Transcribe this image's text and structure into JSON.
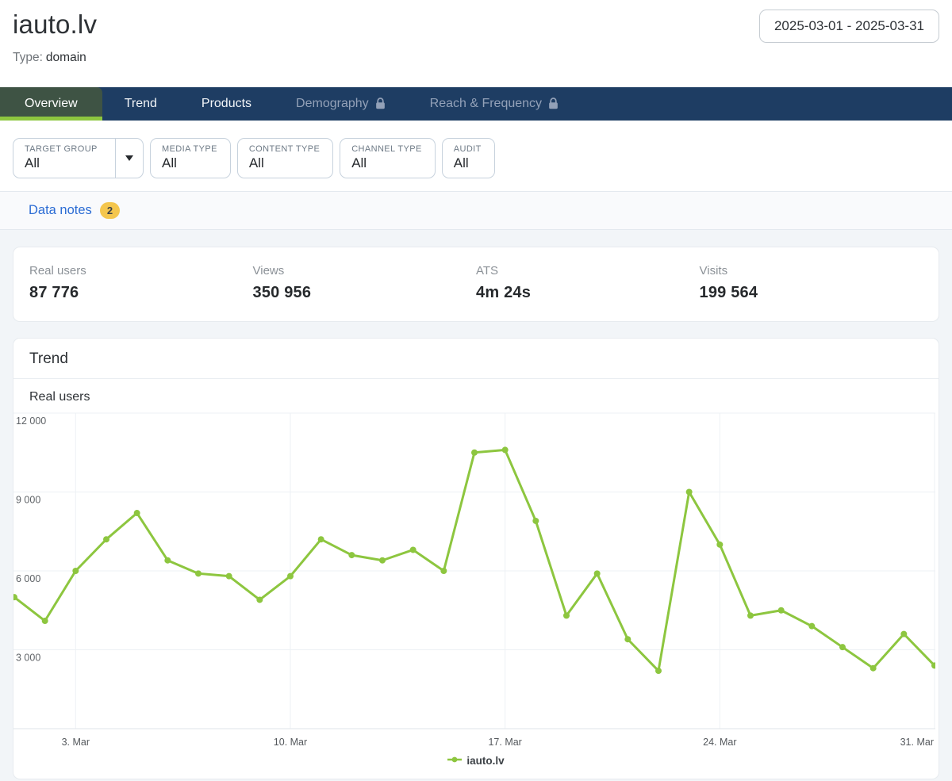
{
  "header": {
    "title": "iauto.lv",
    "type_label": "Type:",
    "type_value": "domain",
    "date_range": "2025-03-01 - 2025-03-31"
  },
  "nav": {
    "tabs": [
      {
        "label": "Overview",
        "active": true,
        "locked": false
      },
      {
        "label": "Trend",
        "active": false,
        "locked": false
      },
      {
        "label": "Products",
        "active": false,
        "locked": false
      },
      {
        "label": "Demography",
        "active": false,
        "locked": true
      },
      {
        "label": "Reach & Frequency",
        "active": false,
        "locked": true
      }
    ]
  },
  "filters": [
    {
      "label": "TARGET GROUP",
      "value": "All",
      "has_dropdown": true
    },
    {
      "label": "MEDIA TYPE",
      "value": "All",
      "has_dropdown": false
    },
    {
      "label": "CONTENT TYPE",
      "value": "All",
      "has_dropdown": false
    },
    {
      "label": "CHANNEL TYPE",
      "value": "All",
      "has_dropdown": false
    },
    {
      "label": "AUDIT",
      "value": "All",
      "has_dropdown": false
    }
  ],
  "data_notes": {
    "label": "Data notes",
    "count": "2"
  },
  "stats": [
    {
      "label": "Real users",
      "value": "87 776"
    },
    {
      "label": "Views",
      "value": "350 956"
    },
    {
      "label": "ATS",
      "value": "4m 24s"
    },
    {
      "label": "Visits",
      "value": "199 564"
    }
  ],
  "trend": {
    "title": "Trend",
    "metric_label": "Real users",
    "legend_label": "iauto.lv"
  },
  "colors": {
    "navy": "#1e3d63",
    "active_tab_green": "#3e5344",
    "accent_green": "#8dc63f",
    "link_blue": "#2b6cd4",
    "badge_amber": "#f4c64d"
  },
  "chart_data": {
    "type": "line",
    "title": "Trend",
    "ylabel": "Real users",
    "x_days": [
      1,
      2,
      3,
      4,
      5,
      6,
      7,
      8,
      9,
      10,
      11,
      12,
      13,
      14,
      15,
      16,
      17,
      18,
      19,
      20,
      21,
      22,
      23,
      24,
      25,
      26,
      27,
      28,
      29,
      30,
      31
    ],
    "x_month": "Mar 2025",
    "series": [
      {
        "name": "iauto.lv",
        "color": "#8dc63f",
        "values": [
          5000,
          4100,
          6000,
          7200,
          8200,
          6400,
          5900,
          5800,
          4900,
          5800,
          7200,
          6600,
          6400,
          6800,
          6000,
          10500,
          10600,
          7900,
          4300,
          5900,
          3400,
          2200,
          9000,
          7000,
          4300,
          4500,
          3900,
          3100,
          2300,
          3600,
          2400
        ]
      }
    ],
    "ylim": [
      0,
      12000
    ],
    "y_ticks": [
      3000,
      6000,
      9000,
      12000
    ],
    "y_tick_labels": [
      "3 000",
      "6 000",
      "9 000",
      "12 000"
    ],
    "x_tick_days": [
      3,
      10,
      17,
      24,
      31
    ],
    "x_tick_labels": [
      "3. Mar",
      "10. Mar",
      "17. Mar",
      "24. Mar",
      "31. Mar"
    ],
    "grid": true,
    "legend_position": "bottom-center"
  }
}
